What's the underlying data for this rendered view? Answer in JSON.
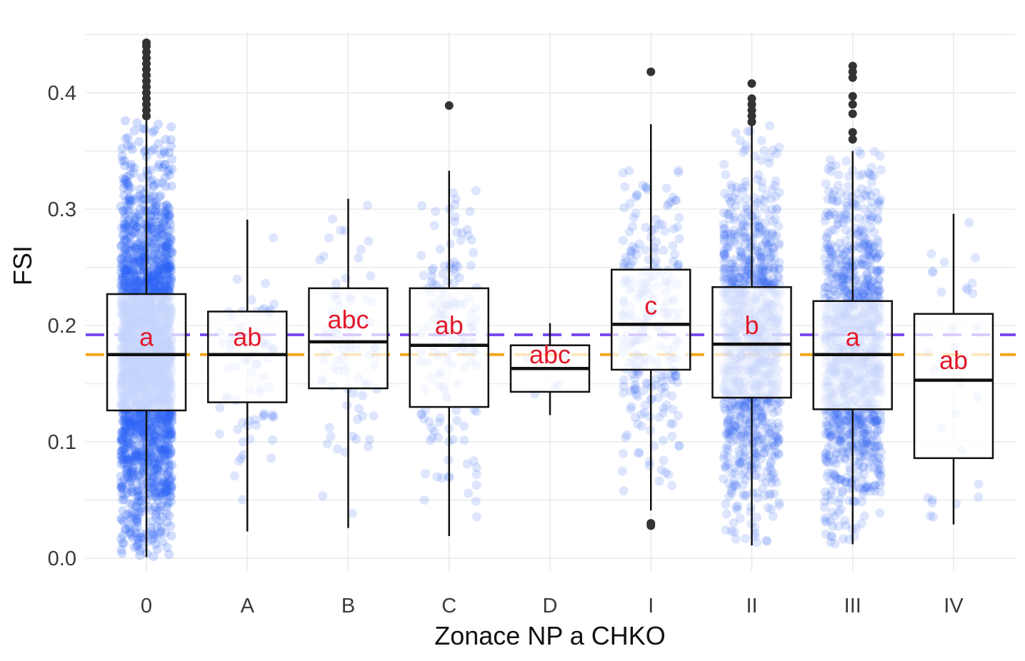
{
  "chart_data": {
    "type": "box",
    "title": "",
    "xlabel": "Zonace NP a CHKO",
    "ylabel": "FSI",
    "ylim": [
      0,
      0.45
    ],
    "yticks": [
      "0.0",
      "0.1",
      "0.2",
      "0.3",
      "0.4"
    ],
    "grid": true,
    "legend": "none",
    "categories": [
      "0",
      "A",
      "B",
      "C",
      "D",
      "I",
      "II",
      "III",
      "IV"
    ],
    "boxes": [
      {
        "category": "0",
        "min": 0.001,
        "q1": 0.127,
        "median": 0.175,
        "q3": 0.227,
        "max": 0.377,
        "outliers": [
          0.38,
          0.385,
          0.39,
          0.395,
          0.4,
          0.405,
          0.41,
          0.415,
          0.42,
          0.425,
          0.43,
          0.435,
          0.44,
          0.443
        ],
        "sig_label": "a",
        "label_y": 0.19,
        "n_points": 2400
      },
      {
        "category": "A",
        "min": 0.023,
        "q1": 0.134,
        "median": 0.175,
        "q3": 0.212,
        "max": 0.291,
        "outliers": [],
        "sig_label": "ab",
        "label_y": 0.19,
        "n_points": 70
      },
      {
        "category": "B",
        "min": 0.026,
        "q1": 0.146,
        "median": 0.186,
        "q3": 0.232,
        "max": 0.309,
        "outliers": [],
        "sig_label": "abc",
        "label_y": 0.205,
        "n_points": 80
      },
      {
        "category": "C",
        "min": 0.019,
        "q1": 0.13,
        "median": 0.183,
        "q3": 0.232,
        "max": 0.333,
        "outliers": [
          0.389
        ],
        "sig_label": "ab",
        "label_y": 0.2,
        "n_points": 150
      },
      {
        "category": "D",
        "min": 0.123,
        "q1": 0.143,
        "median": 0.163,
        "q3": 0.183,
        "max": 0.202,
        "outliers": [],
        "sig_label": "abc",
        "label_y": 0.175,
        "n_points": 6
      },
      {
        "category": "I",
        "min": 0.041,
        "q1": 0.162,
        "median": 0.201,
        "q3": 0.248,
        "max": 0.373,
        "outliers": [
          0.418,
          0.03,
          0.028
        ],
        "sig_label": "c",
        "label_y": 0.217,
        "n_points": 250
      },
      {
        "category": "II",
        "min": 0.011,
        "q1": 0.138,
        "median": 0.184,
        "q3": 0.233,
        "max": 0.372,
        "outliers": [
          0.375,
          0.38,
          0.385,
          0.39,
          0.395,
          0.408
        ],
        "sig_label": "b",
        "label_y": 0.2,
        "n_points": 1100
      },
      {
        "category": "III",
        "min": 0.012,
        "q1": 0.128,
        "median": 0.175,
        "q3": 0.221,
        "max": 0.35,
        "outliers": [
          0.36,
          0.366,
          0.382,
          0.39,
          0.397,
          0.413,
          0.418,
          0.423
        ],
        "sig_label": "a",
        "label_y": 0.19,
        "n_points": 1200
      },
      {
        "category": "IV",
        "min": 0.029,
        "q1": 0.086,
        "median": 0.153,
        "q3": 0.21,
        "max": 0.296,
        "outliers": [],
        "sig_label": "ab",
        "label_y": 0.17,
        "n_points": 30
      }
    ],
    "reference_lines": [
      {
        "y": 0.192,
        "color": "#7b4cf2",
        "style": "dashed"
      },
      {
        "y": 0.175,
        "color": "#f2a516",
        "style": "dashed"
      }
    ],
    "colors": {
      "points": "#2f63f5",
      "sig_label": "#e3192b",
      "outlier": "#333333",
      "box_stroke": "#111111",
      "grid": "#e7ecec"
    }
  }
}
